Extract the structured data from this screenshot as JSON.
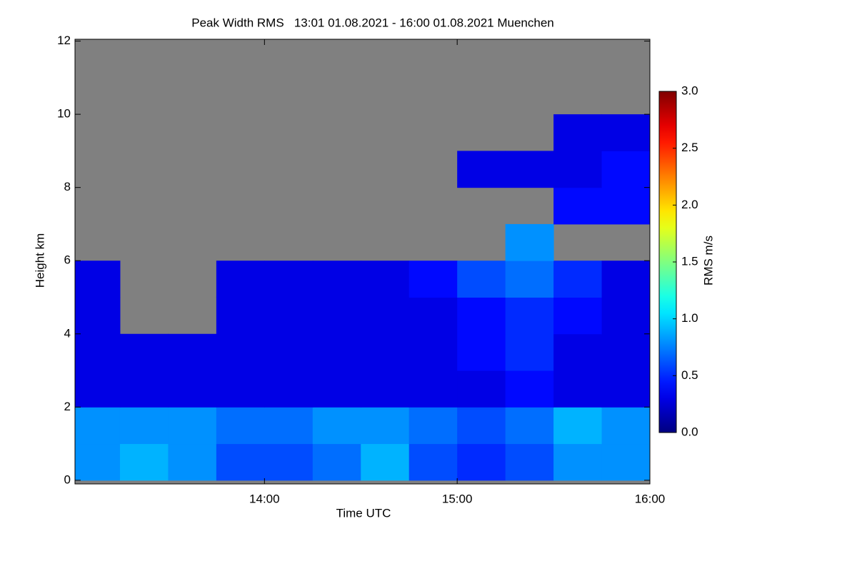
{
  "chart_data": {
    "type": "heatmap",
    "title": "Peak Width RMS   13:01 01.08.2021 - 16:00 01.08.2021 Muenchen",
    "x_label": "Time UTC",
    "y_label": "Height km",
    "colorbar_label": "RMS m/s",
    "xlim": [
      "13:01",
      "16:00"
    ],
    "xticks": [
      "14:00",
      "15:00",
      "16:00"
    ],
    "ylim": [
      -0.1,
      12.05
    ],
    "yticks": [
      0,
      2,
      4,
      6,
      8,
      10,
      12
    ],
    "zlim": [
      0,
      3
    ],
    "zticks": [
      {
        "value": 0,
        "label": "0.0"
      },
      {
        "value": 0.5,
        "label": "0.5"
      },
      {
        "value": 1,
        "label": "1.0"
      },
      {
        "value": 1.5,
        "label": "1.5"
      },
      {
        "value": 2,
        "label": "2.0"
      },
      {
        "value": 2.5,
        "label": "2.5"
      },
      {
        "value": 3,
        "label": "3.0"
      }
    ],
    "colormap": "jet",
    "missing_color": "#808080",
    "x_bins": [
      "13:01",
      "13:15",
      "13:30",
      "13:45",
      "14:00",
      "14:15",
      "14:30",
      "14:45",
      "15:00",
      "15:15",
      "15:30",
      "15:45",
      "16:00"
    ],
    "y_bins": [
      0,
      1,
      2,
      3,
      4,
      5,
      6,
      7,
      8,
      9,
      10,
      11,
      12
    ],
    "z": [
      [
        0.8,
        0.9,
        0.8,
        0.6,
        0.6,
        0.7,
        0.9,
        0.6,
        0.5,
        0.6,
        0.8,
        0.8
      ],
      [
        0.8,
        0.8,
        0.8,
        0.7,
        0.7,
        0.8,
        0.8,
        0.7,
        0.6,
        0.7,
        0.9,
        0.8
      ],
      [
        0.3,
        0.3,
        0.3,
        0.3,
        0.3,
        0.3,
        0.3,
        0.3,
        0.3,
        0.4,
        0.3,
        0.3
      ],
      [
        0.3,
        0.3,
        0.3,
        0.3,
        0.3,
        0.3,
        0.3,
        0.3,
        0.4,
        0.5,
        0.3,
        0.3
      ],
      [
        0.3,
        null,
        null,
        0.3,
        0.3,
        0.3,
        0.3,
        0.3,
        0.4,
        0.5,
        0.4,
        0.3
      ],
      [
        0.3,
        null,
        null,
        0.3,
        0.3,
        0.3,
        0.3,
        0.4,
        0.6,
        0.7,
        0.5,
        0.3
      ],
      [
        null,
        null,
        null,
        null,
        null,
        null,
        null,
        null,
        null,
        0.8,
        null,
        null
      ],
      [
        null,
        null,
        null,
        null,
        null,
        null,
        null,
        null,
        null,
        null,
        0.4,
        0.4
      ],
      [
        null,
        null,
        null,
        null,
        null,
        null,
        null,
        null,
        0.3,
        0.3,
        0.3,
        0.4
      ],
      [
        null,
        null,
        null,
        null,
        null,
        null,
        null,
        null,
        null,
        null,
        0.3,
        0.3
      ],
      [
        null,
        null,
        null,
        null,
        null,
        null,
        null,
        null,
        null,
        null,
        null,
        null
      ],
      [
        null,
        null,
        null,
        null,
        null,
        null,
        null,
        null,
        null,
        null,
        null,
        null
      ]
    ]
  }
}
